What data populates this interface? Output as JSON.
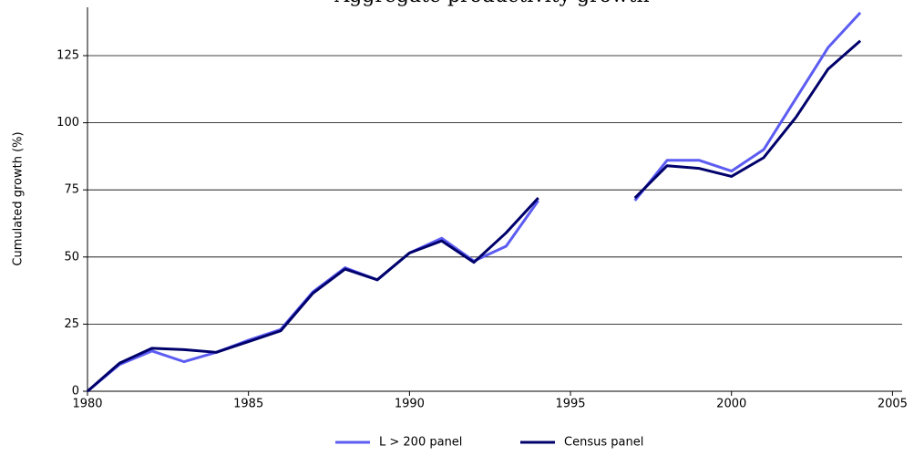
{
  "chart_data": {
    "type": "line",
    "title": "Aggregate productivity growth",
    "y_label": "Cumulated growth (%)",
    "x": [
      1980,
      1981,
      1982,
      1983,
      1984,
      1985,
      1986,
      1987,
      1988,
      1989,
      1990,
      1991,
      1992,
      1993,
      1994,
      1995,
      1996,
      1997,
      1998,
      1999,
      2000,
      2001,
      2002,
      2003,
      2004
    ],
    "series": [
      {
        "name": "L > 200 panel",
        "color": "#5c5cf2",
        "values": [
          0,
          10,
          15,
          11,
          14.5,
          19,
          23,
          37,
          46,
          41.5,
          51.5,
          57,
          48.5,
          54,
          71,
          null,
          null,
          71,
          86,
          86,
          82,
          90,
          109,
          128,
          141
        ]
      },
      {
        "name": "Census panel",
        "color": "#00006b",
        "values": [
          0,
          10.5,
          16,
          15.5,
          14.5,
          18.5,
          22.5,
          36.5,
          45.5,
          41.5,
          51.5,
          56,
          48,
          59,
          72,
          null,
          null,
          72,
          84,
          83,
          80,
          87,
          102,
          120,
          130.5
        ]
      }
    ],
    "xlim": [
      1980,
      2005.3
    ],
    "ylim": [
      0,
      143
    ],
    "xticks": [
      1980,
      1985,
      1990,
      1995,
      2000,
      2005
    ],
    "yticks": [
      0,
      25,
      50,
      75,
      100,
      125
    ],
    "grid": true,
    "legend": "bottom"
  }
}
